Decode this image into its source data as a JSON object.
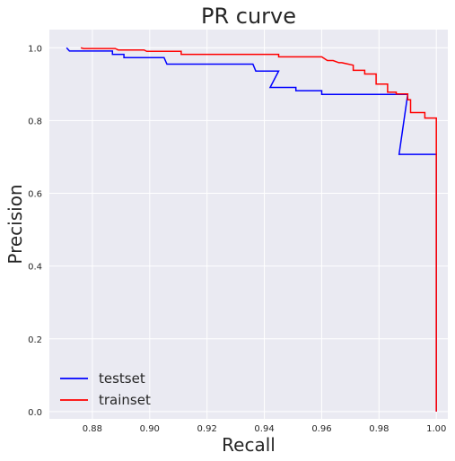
{
  "chart_data": {
    "type": "line",
    "title": "PR curve",
    "xlabel": "Recall",
    "ylabel": "Precision",
    "xlim": [
      0.865,
      1.004
    ],
    "ylim": [
      -0.02,
      1.05
    ],
    "xticks": [
      "0.88",
      "0.90",
      "0.92",
      "0.94",
      "0.96",
      "0.98",
      "1.00"
    ],
    "xtick_values": [
      0.88,
      0.9,
      0.92,
      0.94,
      0.96,
      0.98,
      1.0
    ],
    "yticks": [
      "0.0",
      "0.2",
      "0.4",
      "0.6",
      "0.8",
      "1.0"
    ],
    "ytick_values": [
      0.0,
      0.2,
      0.4,
      0.6,
      0.8,
      1.0
    ],
    "grid": true,
    "legend_position": "lower-left",
    "series": [
      {
        "name": "testset",
        "color": "#0000ff",
        "x": [
          0.871,
          0.872,
          0.887,
          0.887,
          0.891,
          0.891,
          0.905,
          0.906,
          0.936,
          0.937,
          0.945,
          0.942,
          0.951,
          0.951,
          0.96,
          0.96,
          0.99,
          0.987,
          0.987,
          1.0,
          1.0
        ],
        "y": [
          1.0,
          0.991,
          0.991,
          0.982,
          0.982,
          0.973,
          0.973,
          0.955,
          0.955,
          0.936,
          0.936,
          0.891,
          0.891,
          0.882,
          0.882,
          0.872,
          0.872,
          0.707,
          0.707,
          0.707,
          0.0
        ]
      },
      {
        "name": "trainset",
        "color": "#ff0000",
        "x": [
          0.876,
          0.877,
          0.888,
          0.889,
          0.898,
          0.899,
          0.911,
          0.911,
          0.945,
          0.945,
          0.96,
          0.962,
          0.964,
          0.966,
          0.967,
          0.971,
          0.971,
          0.975,
          0.975,
          0.979,
          0.979,
          0.983,
          0.983,
          0.986,
          0.986,
          0.99,
          0.99,
          0.991,
          0.991,
          0.996,
          0.996,
          1.0,
          1.0,
          1.0
        ],
        "y": [
          1.0,
          0.998,
          0.998,
          0.994,
          0.994,
          0.99,
          0.99,
          0.982,
          0.982,
          0.975,
          0.975,
          0.965,
          0.965,
          0.959,
          0.959,
          0.952,
          0.938,
          0.938,
          0.928,
          0.928,
          0.9,
          0.9,
          0.878,
          0.878,
          0.873,
          0.873,
          0.857,
          0.857,
          0.822,
          0.822,
          0.807,
          0.807,
          0.807,
          0.0
        ]
      }
    ]
  }
}
